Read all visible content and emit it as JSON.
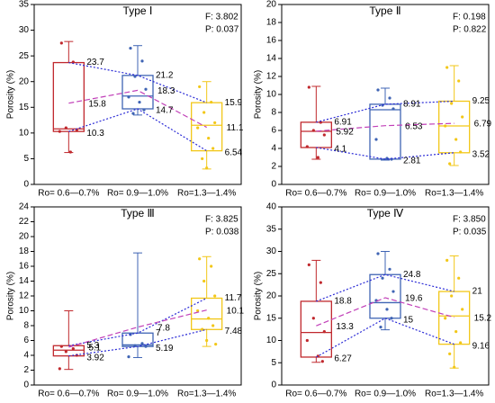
{
  "chart_data": [
    {
      "type": "box",
      "title": "Type Ⅰ",
      "f_text": "F: 3.802",
      "p_text": "P: 0.037",
      "ylabel": "Porosity (%)",
      "categories": [
        "Ro= 0.6—0.7%",
        "Ro= 0.9—1.0%",
        "Ro=1.3—1.4%"
      ],
      "ylim": [
        0,
        35
      ],
      "yticks": [
        0,
        5,
        10,
        15,
        20,
        25,
        30,
        35
      ],
      "boxes": [
        {
          "color": "#c0282d",
          "q1": 10.3,
          "q3": 23.7,
          "mean": 15.8,
          "median": 10.8,
          "whisker_low": 6.2,
          "whisker_high": 27.8,
          "points": [
            27.5,
            23.8,
            11,
            10.5,
            10.3,
            6.3
          ]
        },
        {
          "color": "#3f64b4",
          "q1": 14.7,
          "q3": 21.2,
          "mean": 18.3,
          "median": 17.2,
          "whisker_low": 13.5,
          "whisker_high": 27,
          "points": [
            26.5,
            24,
            21,
            18.5,
            17,
            16,
            14.5,
            13.8
          ]
        },
        {
          "color": "#f2c718",
          "q1": 6.54,
          "q3": 15.9,
          "mean": 11.1,
          "median": 11.5,
          "whisker_low": 3,
          "whisker_high": 20,
          "points": [
            19,
            16,
            14,
            12,
            11,
            9,
            7,
            5,
            3.2
          ]
        }
      ]
    },
    {
      "type": "box",
      "title": "Type Ⅱ",
      "f_text": "F: 0.198",
      "p_text": "P: 0.822",
      "ylabel": "Porosity (%)",
      "categories": [
        "Ro= 0.6—0.7%",
        "Ro= 0.9—1.0%",
        "Ro=1.3—1.4%"
      ],
      "ylim": [
        0,
        20
      ],
      "yticks": [
        0,
        2,
        4,
        6,
        8,
        10,
        12,
        14,
        16,
        18,
        20
      ],
      "boxes": [
        {
          "color": "#c0282d",
          "q1": 4.1,
          "q3": 6.91,
          "mean": 5.92,
          "median": 5.9,
          "whisker_low": 2.8,
          "whisker_high": 10.9,
          "points": [
            10.8,
            6.9,
            6,
            5.5,
            4.2,
            3
          ]
        },
        {
          "color": "#3f64b4",
          "q1": 2.81,
          "q3": 8.91,
          "mean": 6.53,
          "median": 8.3,
          "whisker_low": 2.7,
          "whisker_high": 10.7,
          "points": [
            10.5,
            9.6,
            8.8,
            8.4,
            5,
            2.9,
            2.8
          ]
        },
        {
          "color": "#f2c718",
          "q1": 3.52,
          "q3": 9.25,
          "mean": 6.79,
          "median": 6.5,
          "whisker_low": 2.1,
          "whisker_high": 13.2,
          "points": [
            13,
            11.5,
            9,
            7.5,
            6.5,
            5,
            3.6,
            2.3
          ]
        }
      ]
    },
    {
      "type": "box",
      "title": "Type Ⅲ",
      "f_text": "F: 3.825",
      "p_text": "P: 0.038",
      "ylabel": "Porosity (%)",
      "categories": [
        "Ro= 0.6—0.7%",
        "Ro= 0.9—1.0%",
        "Ro=1.3—1.4%"
      ],
      "ylim": [
        0,
        24
      ],
      "yticks": [
        0,
        2,
        4,
        6,
        8,
        10,
        12,
        14,
        16,
        18,
        20,
        22,
        24
      ],
      "boxes": [
        {
          "color": "#c0282d",
          "q1": 3.92,
          "q3": 5.3,
          "mean": 5.1,
          "median": 4.7,
          "whisker_low": 2.1,
          "whisker_high": 10,
          "points": [
            5.2,
            4.9,
            4.5,
            4,
            2.2
          ]
        },
        {
          "color": "#3f64b4",
          "q1": 5.19,
          "q3": 7,
          "mean": 7.8,
          "median": 5.4,
          "whisker_low": 3.7,
          "whisker_high": 17.8,
          "points": [
            6.8,
            5.6,
            5.3,
            5.2,
            3.8
          ]
        },
        {
          "color": "#f2c718",
          "q1": 7.48,
          "q3": 11.7,
          "mean": 10.1,
          "median": 8.9,
          "whisker_low": 5.2,
          "whisker_high": 17.3,
          "points": [
            17,
            16,
            14,
            12,
            10,
            9,
            8,
            7.5,
            6,
            5.5
          ]
        }
      ]
    },
    {
      "type": "box",
      "title": "Type Ⅳ",
      "f_text": "F: 3.850",
      "p_text": "P: 0.035",
      "ylabel": "Porosity (%)",
      "categories": [
        "Ro= 0.6—0.7%",
        "Ro= 0.9—1.0%",
        "Ro=1.3—1.4%"
      ],
      "ylim": [
        0,
        40
      ],
      "yticks": [
        0,
        5,
        10,
        15,
        20,
        25,
        30,
        35,
        40
      ],
      "boxes": [
        {
          "color": "#c0282d",
          "q1": 6.27,
          "q3": 18.8,
          "mean": 13.3,
          "median": 11.8,
          "whisker_low": 5.1,
          "whisker_high": 28,
          "points": [
            27,
            23,
            15,
            12,
            10,
            6.5,
            5.3
          ]
        },
        {
          "color": "#3f64b4",
          "q1": 15,
          "q3": 24.8,
          "mean": 19.6,
          "median": 18.5,
          "whisker_low": 12.4,
          "whisker_high": 30,
          "points": [
            29.5,
            26,
            24,
            21,
            19,
            17,
            15,
            13
          ]
        },
        {
          "color": "#f2c718",
          "q1": 9.16,
          "q3": 21,
          "mean": 15.2,
          "median": 15.5,
          "whisker_low": 3.8,
          "whisker_high": 29,
          "points": [
            28,
            24,
            20,
            17,
            15,
            12,
            9.5,
            7,
            4
          ]
        }
      ]
    }
  ]
}
